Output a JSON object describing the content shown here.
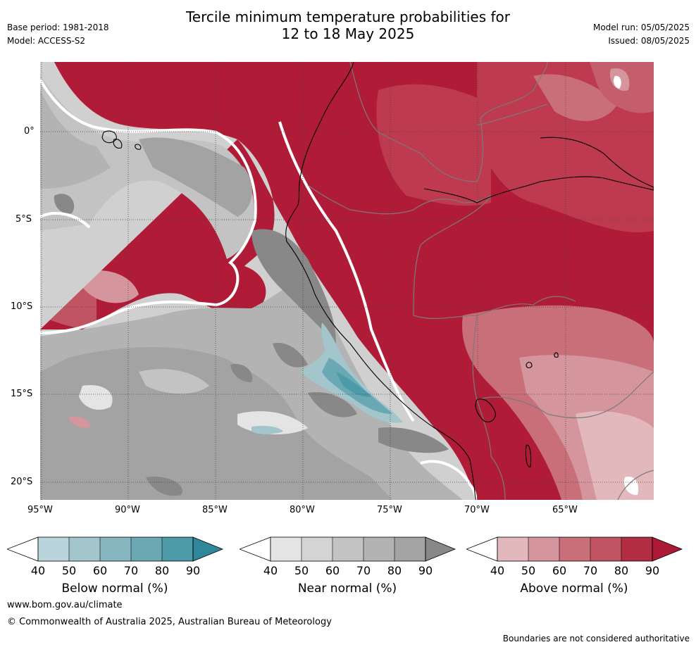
{
  "header": {
    "title_line1": "Tercile minimum temperature probabilities for",
    "title_line2": "12 to 18 May 2025",
    "base_period": "Base period: 1981-2018",
    "model": "Model: ACCESS-S2",
    "model_run": "Model run: 05/05/2025",
    "issued": "Issued: 08/05/2025"
  },
  "map": {
    "region": "Western South America and adjacent Pacific Ocean",
    "lon_ticks": [
      "95°W",
      "90°W",
      "85°W",
      "80°W",
      "75°W",
      "70°W",
      "65°W"
    ],
    "lat_ticks": [
      "0°",
      "5°S",
      "10°S",
      "15°S",
      "20°S"
    ],
    "dominant_category": "Above normal",
    "colors": {
      "above": [
        "#e3b8bd",
        "#d5959c",
        "#c96f79",
        "#c05462",
        "#b32e42",
        "#ad1a35"
      ],
      "near": [
        "#e4e4e4",
        "#d4d4d4",
        "#c3c3c3",
        "#b3b3b3",
        "#a3a3a3",
        "#888888"
      ],
      "below": [
        "#b9d4da",
        "#a3c6cd",
        "#87b6c1",
        "#6aa8b4",
        "#4d9aa8",
        "#2f8899"
      ],
      "border_country": "#7a7a7a",
      "coastline": "#000000"
    }
  },
  "colorbars": [
    {
      "label": "Below normal (%)",
      "ticks": [
        "40",
        "50",
        "60",
        "70",
        "80",
        "90"
      ]
    },
    {
      "label": "Near normal (%)",
      "ticks": [
        "40",
        "50",
        "60",
        "70",
        "80",
        "90"
      ]
    },
    {
      "label": "Above normal (%)",
      "ticks": [
        "40",
        "50",
        "60",
        "70",
        "80",
        "90"
      ]
    }
  ],
  "footer": {
    "url": "www.bom.gov.au/climate",
    "copyright": "© Commonwealth of Australia 2025, Australian Bureau of Meteorology",
    "disclaimer": "Boundaries are not considered authoritative"
  }
}
